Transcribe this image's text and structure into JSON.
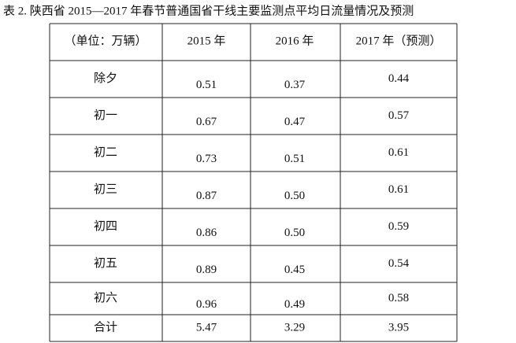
{
  "title": "表 2.  陕西省 2015—2017 年春节普通国省干线主要监测点平均日流量情况及预测",
  "table": {
    "header": [
      "（单位：万辆）",
      "2015 年",
      "2016 年",
      "2017 年（预测）"
    ],
    "rows": [
      [
        "除夕",
        "0.51",
        "0.37",
        "0.44"
      ],
      [
        "初一",
        "0.67",
        "0.47",
        "0.57"
      ],
      [
        "初二",
        "0.73",
        "0.51",
        "0.61"
      ],
      [
        "初三",
        "0.87",
        "0.50",
        "0.61"
      ],
      [
        "初四",
        "0.86",
        "0.50",
        "0.59"
      ],
      [
        "初五",
        "0.89",
        "0.45",
        "0.54"
      ],
      [
        "初六",
        "0.96",
        "0.49",
        "0.58"
      ],
      [
        "合计",
        "5.47",
        "3.29",
        "3.95"
      ]
    ]
  }
}
